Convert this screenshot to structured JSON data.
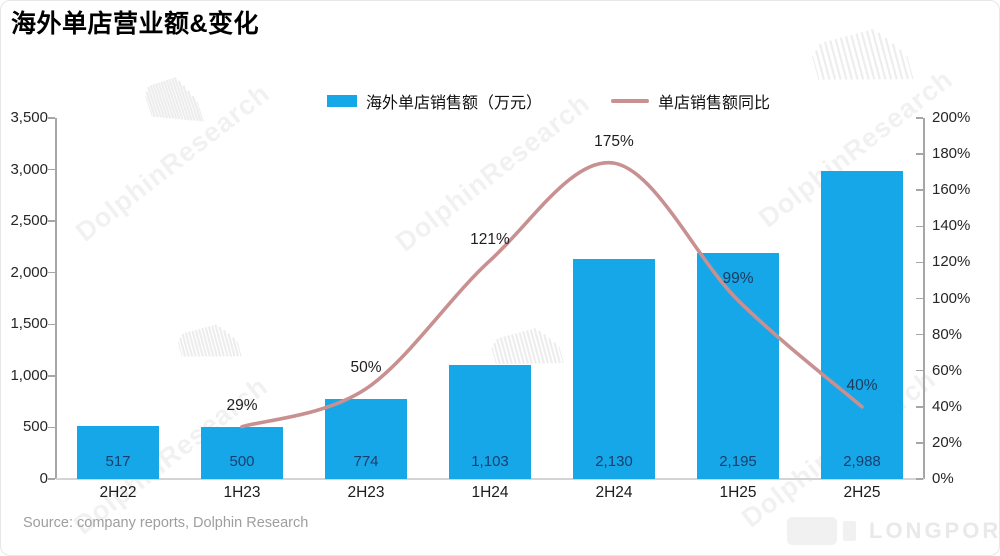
{
  "title": "海外单店营业额&变化",
  "legend": {
    "bar_label": "海外单店销售额（万元）",
    "line_label": "单店销售额同比"
  },
  "source": "Source: company reports, Dolphin Research",
  "watermark": "DolphinResearch",
  "brand": "LONGPORT",
  "colors": {
    "bar": "#16A7E8",
    "bar_value_label": "#1A3E6E",
    "line": "#C89090",
    "point_label": "#1F1F1F",
    "point_label_on_bar": "#1C3A5E",
    "axis": "#A6A6A6",
    "baseline": "#D4D4D4",
    "tick_label": "#262626",
    "source_text": "#9E9E9E",
    "brand_text": "#E9E9E9"
  },
  "chart_data": {
    "type": "bar",
    "combo": "bar + line, dual axis",
    "title": "海外单店营业额&变化",
    "categories": [
      "2H22",
      "1H23",
      "2H23",
      "1H24",
      "2H24",
      "1H25",
      "2H25"
    ],
    "series": [
      {
        "name": "海外单店销售额（万元）",
        "type": "bar",
        "axis": "left",
        "values": [
          517,
          500,
          774,
          1103,
          2130,
          2195,
          2988
        ],
        "value_labels": [
          "517",
          "500",
          "774",
          "1,103",
          "2,130",
          "2,195",
          "2,988"
        ]
      },
      {
        "name": "单店销售额同比",
        "type": "line",
        "axis": "right",
        "values_pct": [
          null,
          29,
          50,
          121,
          175,
          99,
          40
        ],
        "point_labels": [
          null,
          "29%",
          "50%",
          "121%",
          "175%",
          "99%",
          "40%"
        ]
      }
    ],
    "left_axis": {
      "min": 0,
      "max": 3500,
      "step": 500,
      "tick_labels": [
        "0",
        "500",
        "1,000",
        "1,500",
        "2,000",
        "2,500",
        "3,000",
        "3,500"
      ]
    },
    "right_axis": {
      "min": 0,
      "max": 200,
      "step": 20,
      "tick_labels": [
        "0%",
        "20%",
        "40%",
        "60%",
        "80%",
        "100%",
        "120%",
        "140%",
        "160%",
        "180%",
        "200%"
      ]
    },
    "grid": false,
    "legend_position": "top-center"
  }
}
